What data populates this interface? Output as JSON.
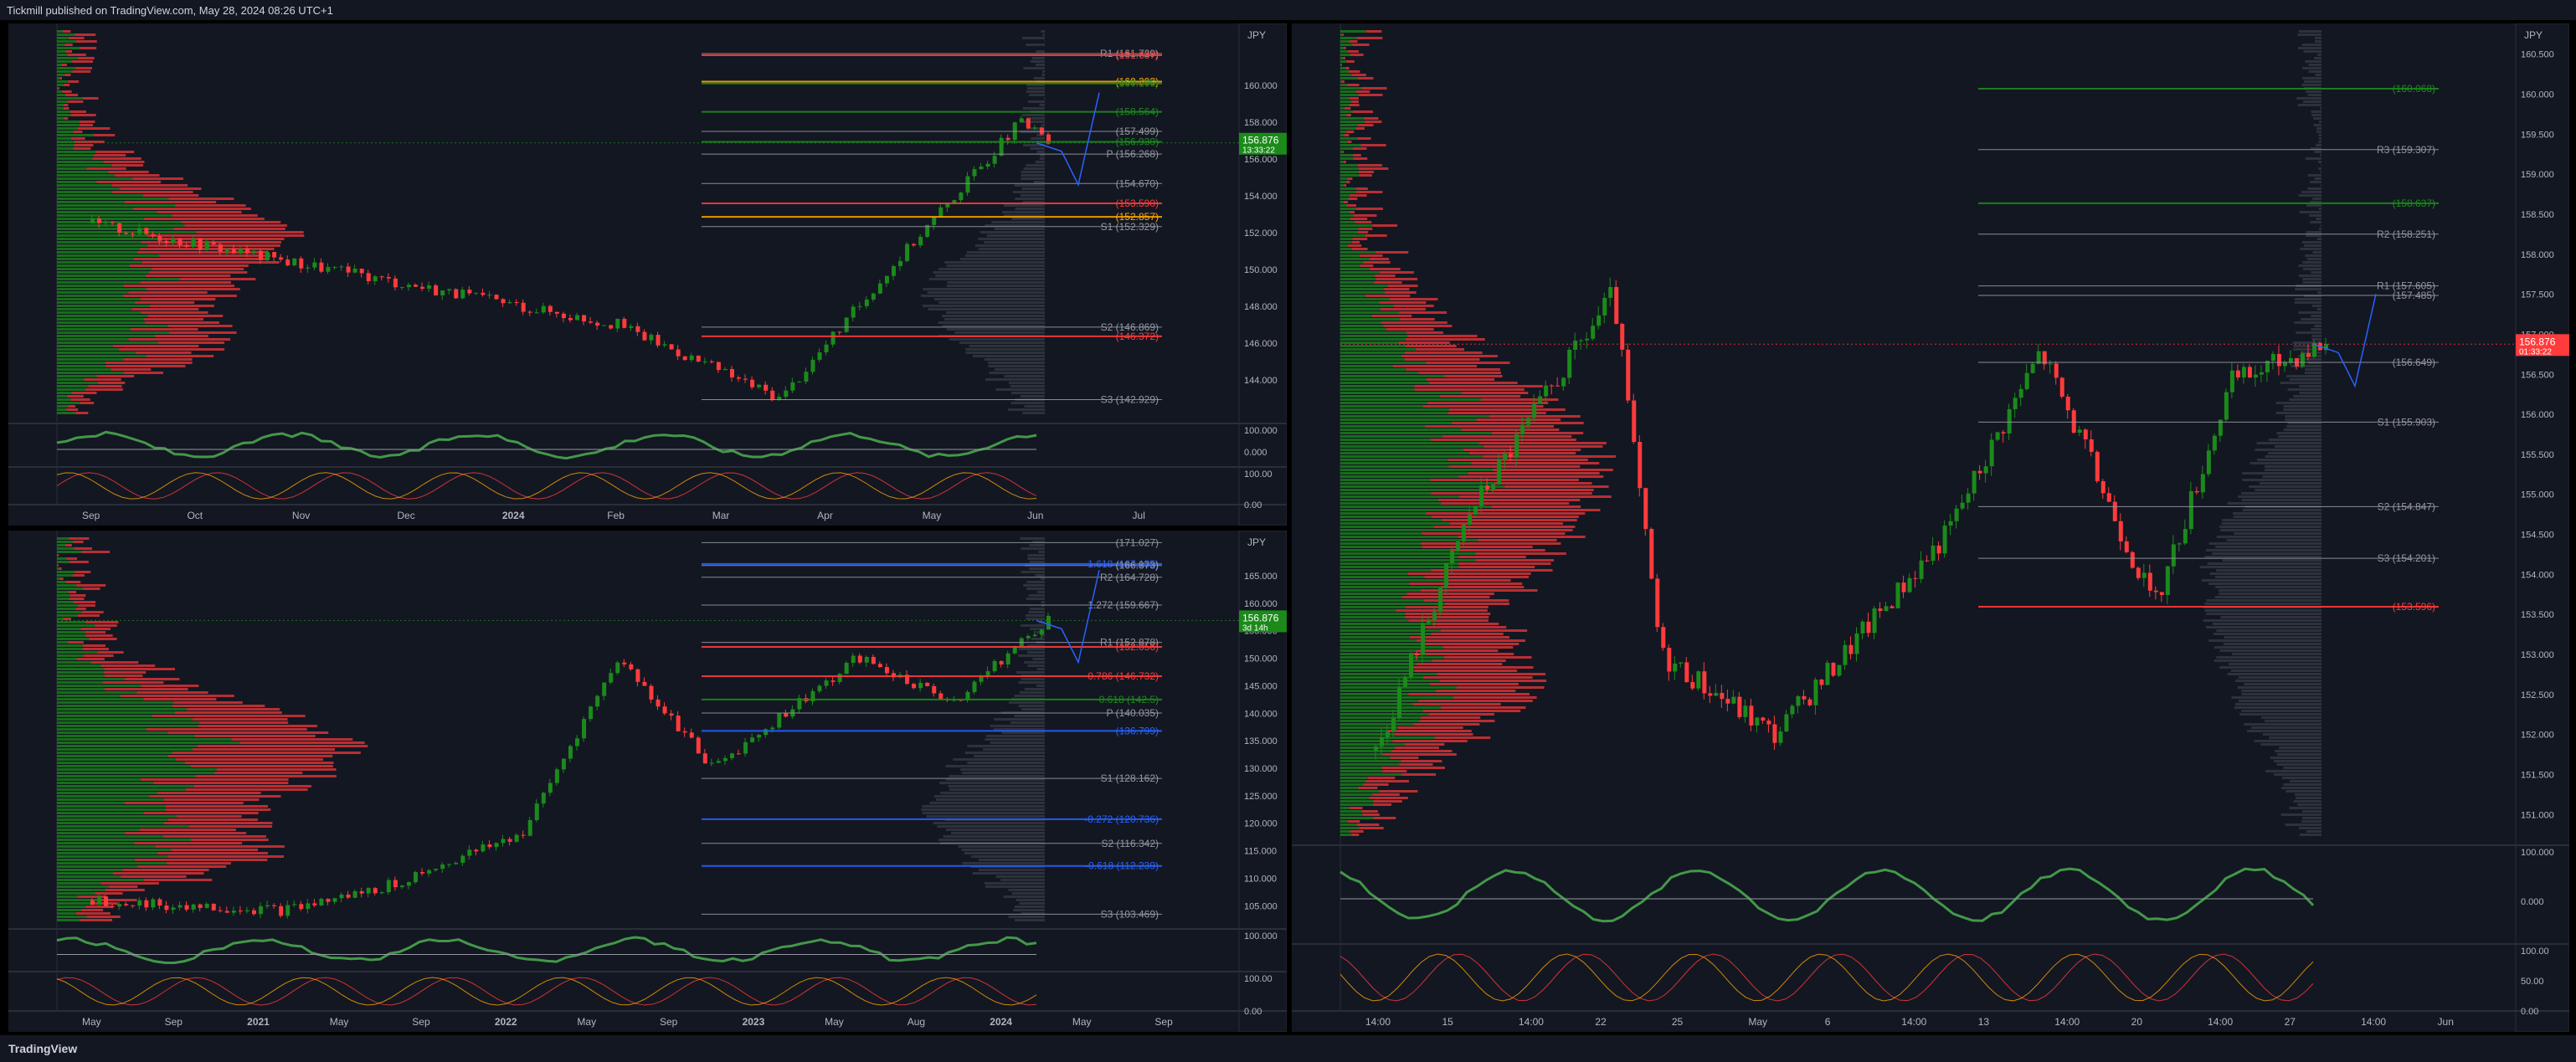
{
  "header": {
    "published": "Tickmill published on TradingView.com, May 28, 2024 08:26 UTC+1"
  },
  "footer": {
    "logo": "TradingView"
  },
  "colors": {
    "bull": "#1b8a1b",
    "bear": "#ff3b3b",
    "bg": "#131722",
    "grid": "#1e222d",
    "text": "#b2b5be"
  },
  "panels": [
    {
      "id": "weekly",
      "currency": "JPY",
      "price_min": 142,
      "price_max": 163,
      "last_price": {
        "value": "156.876",
        "time": "13:33:22"
      },
      "price_ticks": [
        "160.000",
        "158.000",
        "156.000",
        "154.000",
        "152.000",
        "150.000",
        "148.000",
        "146.000",
        "144.000"
      ],
      "time_labels": [
        "Sep",
        "Oct",
        "Nov",
        "Dec",
        "2024",
        "Feb",
        "Mar",
        "Apr",
        "May",
        "Jun",
        "Jul"
      ],
      "levels": [
        {
          "label": "R1 (161.729)",
          "value": 161.729,
          "color": "#9598a1"
        },
        {
          "label": "(161.637)",
          "value": 161.637,
          "color": "#ff3b3b"
        },
        {
          "label": "(160.203)",
          "value": 160.203,
          "color": "#ffa500"
        },
        {
          "label": "(160.105)",
          "value": 160.105,
          "color": "#1b8a1b"
        },
        {
          "label": "(158.564)",
          "value": 158.564,
          "color": "#1b8a1b"
        },
        {
          "label": "(157.499)",
          "value": 157.499,
          "color": "#9598a1"
        },
        {
          "label": "(156.930)",
          "value": 156.93,
          "color": "#1b8a1b"
        },
        {
          "label": "P (156.268)",
          "value": 156.268,
          "color": "#9598a1"
        },
        {
          "label": "(154.670)",
          "value": 154.67,
          "color": "#9598a1"
        },
        {
          "label": "(153.590)",
          "value": 153.59,
          "color": "#ff3b3b"
        },
        {
          "label": "(152.857)",
          "value": 152.857,
          "color": "#ffa500"
        },
        {
          "label": "S1 (152.329)",
          "value": 152.329,
          "color": "#9598a1"
        },
        {
          "label": "S2 (146.869)",
          "value": 146.869,
          "color": "#9598a1"
        },
        {
          "label": "(146.372)",
          "value": 146.372,
          "color": "#ff3b3b"
        },
        {
          "label": "S3 (142.929)",
          "value": 142.929,
          "color": "#9598a1"
        }
      ],
      "sub1_ticks": [
        "100.000",
        "0.000"
      ],
      "sub2_ticks": [
        "100.00",
        "0.00"
      ]
    },
    {
      "id": "monthly",
      "currency": "JPY",
      "price_min": 102,
      "price_max": 172,
      "last_price": {
        "value": "156.876",
        "time": "3d 14h"
      },
      "price_ticks": [
        "165.000",
        "160.000",
        "155.000",
        "150.000",
        "145.000",
        "140.000",
        "135.000",
        "130.000",
        "125.000",
        "120.000",
        "115.000",
        "110.000",
        "105.000"
      ],
      "time_labels": [
        "May",
        "Sep",
        "2021",
        "May",
        "Sep",
        "2022",
        "May",
        "Sep",
        "2023",
        "May",
        "Aug",
        "2024",
        "May",
        "Sep"
      ],
      "levels": [
        {
          "label": "(171.027)",
          "value": 171.027,
          "color": "#9598a1"
        },
        {
          "label": "1.618 (167.155)",
          "value": 167.155,
          "color": "#2962ff"
        },
        {
          "label": "(166.873)",
          "value": 166.873,
          "color": "#9598a1"
        },
        {
          "label": "R2 (164.728)",
          "value": 164.728,
          "color": "#9598a1"
        },
        {
          "label": "1.272 (159.667)",
          "value": 159.667,
          "color": "#9598a1"
        },
        {
          "label": "R1 (152.878)",
          "value": 152.878,
          "color": "#9598a1"
        },
        {
          "label": "(152.056)",
          "value": 152.056,
          "color": "#ff3b3b"
        },
        {
          "label": "0.786 (146.732)",
          "value": 146.732,
          "color": "#ff3b3b"
        },
        {
          "label": "0.618 (142.5)",
          "value": 142.5,
          "color": "#1b8a1b"
        },
        {
          "label": "P (140.035)",
          "value": 140.035,
          "color": "#9598a1"
        },
        {
          "label": "(136.799)",
          "value": 136.799,
          "color": "#2962ff"
        },
        {
          "label": "S1 (128.162)",
          "value": 128.162,
          "color": "#9598a1"
        },
        {
          "label": "-0.272 (120.736)",
          "value": 120.736,
          "color": "#2962ff"
        },
        {
          "label": "S2 (116.342)",
          "value": 116.342,
          "color": "#9598a1"
        },
        {
          "label": "-0.618 (112.239)",
          "value": 112.239,
          "color": "#2962ff"
        },
        {
          "label": "S3 (103.469)",
          "value": 103.469,
          "color": "#9598a1"
        }
      ],
      "sub1_ticks": [
        "100.000"
      ],
      "sub2_ticks": [
        "100.00",
        "0.00"
      ]
    },
    {
      "id": "hourly",
      "currency": "JPY",
      "price_min": 150.7,
      "price_max": 160.8,
      "last_price": {
        "value": "156.876",
        "time": "01:33:22"
      },
      "price_ticks": [
        "160.500",
        "160.000",
        "159.500",
        "159.000",
        "158.500",
        "158.000",
        "157.500",
        "157.000",
        "156.500",
        "156.000",
        "155.500",
        "155.000",
        "154.500",
        "154.000",
        "153.500",
        "153.000",
        "152.500",
        "152.000",
        "151.500",
        "151.000"
      ],
      "time_labels": [
        "14:00",
        "15",
        "14:00",
        "22",
        "25",
        "May",
        "6",
        "14:00",
        "13",
        "14:00",
        "20",
        "14:00",
        "27",
        "14:00",
        "Jun"
      ],
      "levels": [
        {
          "label": "(160.068)",
          "value": 160.068,
          "color": "#1b8a1b"
        },
        {
          "label": "R3 (159.307)",
          "value": 159.307,
          "color": "#9598a1"
        },
        {
          "label": "(158.637)",
          "value": 158.637,
          "color": "#1b8a1b"
        },
        {
          "label": "R2 (158.251)",
          "value": 158.251,
          "color": "#9598a1"
        },
        {
          "label": "R1 (157.605)",
          "value": 157.605,
          "color": "#9598a1"
        },
        {
          "label": "(157.485)",
          "value": 157.485,
          "color": "#9598a1"
        },
        {
          "label": "(156.649)",
          "value": 156.649,
          "color": "#9598a1"
        },
        {
          "label": "S1 (155.903)",
          "value": 155.903,
          "color": "#9598a1"
        },
        {
          "label": "S2 (154.847)",
          "value": 154.847,
          "color": "#9598a1"
        },
        {
          "label": "S3 (154.201)",
          "value": 154.201,
          "color": "#9598a1"
        },
        {
          "label": "(153.596)",
          "value": 153.596,
          "color": "#ff3b3b"
        }
      ],
      "sub1_ticks": [
        "100.000",
        "0.000"
      ],
      "sub2_ticks": [
        "100.00",
        "50.00",
        "0.00"
      ]
    }
  ]
}
